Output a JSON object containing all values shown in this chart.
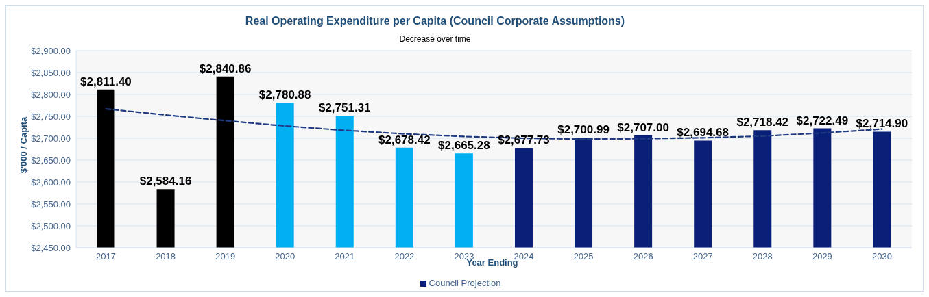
{
  "chart_data": {
    "type": "bar",
    "title": "Real Operating Expenditure per Capita (Council Corporate Assumptions)",
    "subtitle": "Decrease over time",
    "xlabel": "Year Ending",
    "ylabel": "$'000 / Capita",
    "categories": [
      "2017",
      "2018",
      "2019",
      "2020",
      "2021",
      "2022",
      "2023",
      "2024",
      "2025",
      "2026",
      "2027",
      "2028",
      "2029",
      "2030"
    ],
    "series": [
      {
        "name": "Council Projection",
        "color": "#0a1f78",
        "colors": [
          "#000000",
          "#000000",
          "#000000",
          "#00b0f0",
          "#00b0f0",
          "#00b0f0",
          "#00b0f0",
          "#0a1f78",
          "#0a1f78",
          "#0a1f78",
          "#0a1f78",
          "#0a1f78",
          "#0a1f78",
          "#0a1f78"
        ],
        "values": [
          2811.4,
          2584.16,
          2840.86,
          2780.88,
          2751.31,
          2678.42,
          2665.28,
          2677.73,
          2700.99,
          2707.0,
          2694.68,
          2718.42,
          2722.49,
          2714.9
        ],
        "value_labels": [
          "$2,811.40",
          "$2,584.16",
          "$2,840.86",
          "$2,780.88",
          "$2,751.31",
          "$2,678.42",
          "$2,665.28",
          "$2,677.73",
          "$2,700.99",
          "$2,707.00",
          "$2,694.68",
          "$2,718.42",
          "$2,722.49",
          "$2,714.90"
        ]
      },
      {
        "type": "line",
        "color": "#1f3a80",
        "line_style": "dashed",
        "marker": "none",
        "values": [
          2767,
          2753,
          2740,
          2728,
          2718,
          2710,
          2704,
          2700,
          2698,
          2699,
          2701,
          2705,
          2712,
          2721
        ]
      }
    ],
    "ylim": [
      2450,
      2900
    ],
    "yticks": [
      {
        "value": 2450,
        "label": "$2,450.00"
      },
      {
        "value": 2500,
        "label": "$2,500.00"
      },
      {
        "value": 2550,
        "label": "$2,550.00"
      },
      {
        "value": 2600,
        "label": "$2,600.00"
      },
      {
        "value": 2650,
        "label": "$2,650.00"
      },
      {
        "value": 2700,
        "label": "$2,700.00"
      },
      {
        "value": 2750,
        "label": "$2,750.00"
      },
      {
        "value": 2800,
        "label": "$2,800.00"
      },
      {
        "value": 2850,
        "label": "$2,850.00"
      },
      {
        "value": 2900,
        "label": "$2,900.00"
      }
    ],
    "grid": "y",
    "legend": "bottom"
  }
}
